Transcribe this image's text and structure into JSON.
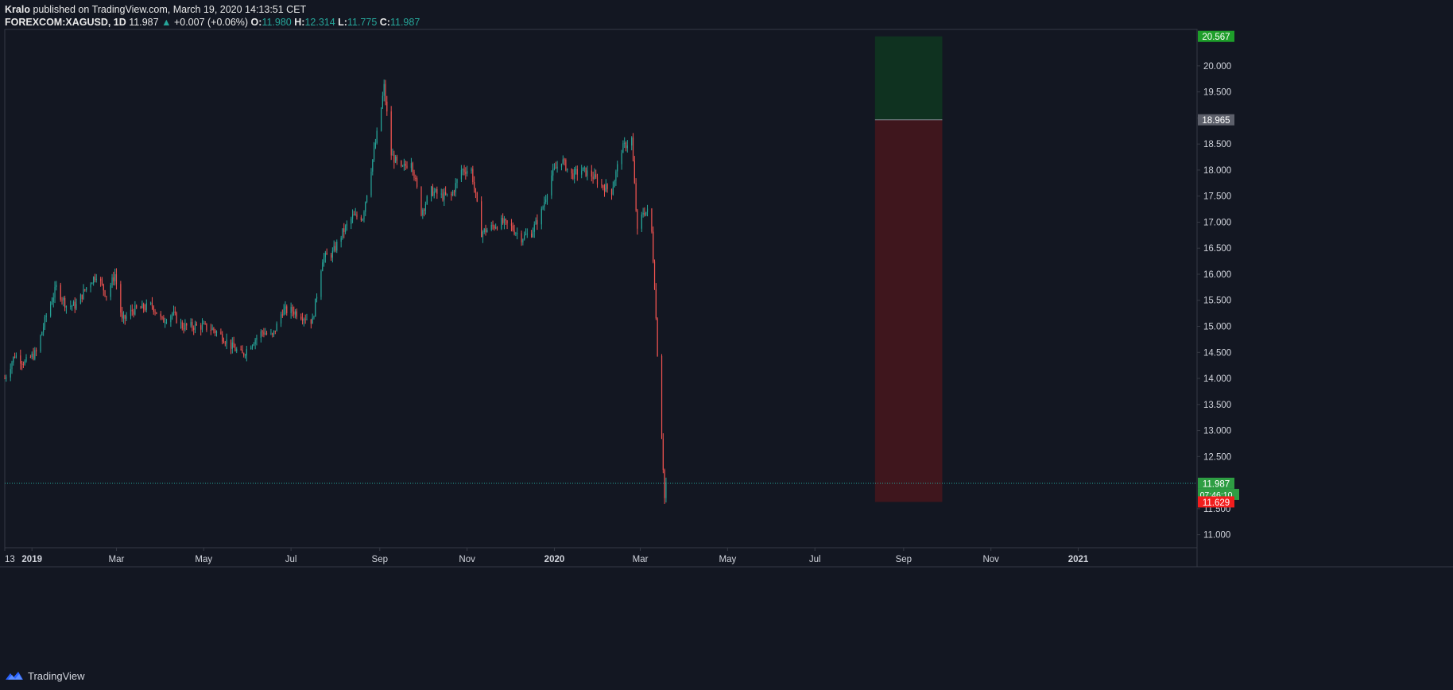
{
  "header": {
    "author": "Kralo",
    "published_text": "published on TradingView.com, March 19, 2020 14:13:51 CET",
    "symbol": "FOREXCOM:XAGUSD, 1D",
    "last": "11.987",
    "change": "+0.007 (+0.06%)",
    "o_label": "O:",
    "o": "11.980",
    "h_label": "H:",
    "h": "12.314",
    "l_label": "L:",
    "l": "11.775",
    "c_label": "C:",
    "c": "11.987"
  },
  "footer": {
    "logo_text": "TradingView",
    "logo_icon": "tradingview-logo-icon"
  },
  "colors": {
    "background": "#131722",
    "up": "#26a69a",
    "down": "#ef5350",
    "target_zone": "#0f3220",
    "stop_zone": "#3f161d",
    "axis_text": "#d1d4dc",
    "border": "#363a45"
  },
  "chart_data": {
    "type": "candlestick",
    "symbol": "FOREXCOM:XAGUSD",
    "interval": "1D",
    "ylim": [
      10.75,
      20.7
    ],
    "y_ticks": [
      "11.000",
      "11.500",
      "12.500",
      "13.000",
      "13.500",
      "14.000",
      "14.500",
      "15.000",
      "15.500",
      "16.000",
      "16.500",
      "17.000",
      "17.500",
      "18.000",
      "18.500",
      "19.000",
      "19.500",
      "20.000"
    ],
    "x_start": "2018-12-13",
    "x_end": "2021-03-25",
    "x_ticks": [
      {
        "date": "2018-12-13",
        "label": "13"
      },
      {
        "date": "2019-01-01",
        "label": "2019"
      },
      {
        "date": "2019-03-01",
        "label": "Mar"
      },
      {
        "date": "2019-05-01",
        "label": "May"
      },
      {
        "date": "2019-07-01",
        "label": "Jul"
      },
      {
        "date": "2019-09-01",
        "label": "Sep"
      },
      {
        "date": "2019-11-01",
        "label": "Nov"
      },
      {
        "date": "2020-01-01",
        "label": "2020"
      },
      {
        "date": "2020-03-01",
        "label": "Mar"
      },
      {
        "date": "2020-05-01",
        "label": "May"
      },
      {
        "date": "2020-07-01",
        "label": "Jul"
      },
      {
        "date": "2020-09-01",
        "label": "Sep"
      },
      {
        "date": "2020-11-01",
        "label": "Nov"
      },
      {
        "date": "2021-01-01",
        "label": "2021"
      }
    ],
    "price_path": [
      [
        "2018-12-13",
        14.0
      ],
      [
        "2018-12-20",
        14.45
      ],
      [
        "2018-12-27",
        14.3
      ],
      [
        "2019-01-04",
        14.5
      ],
      [
        "2019-01-11",
        15.2
      ],
      [
        "2019-01-18",
        15.75
      ],
      [
        "2019-01-25",
        15.4
      ],
      [
        "2019-02-01",
        15.4
      ],
      [
        "2019-02-08",
        15.75
      ],
      [
        "2019-02-15",
        16.0
      ],
      [
        "2019-02-22",
        15.6
      ],
      [
        "2019-02-28",
        16.0
      ],
      [
        "2019-03-05",
        15.1
      ],
      [
        "2019-03-12",
        15.3
      ],
      [
        "2019-03-19",
        15.35
      ],
      [
        "2019-03-26",
        15.4
      ],
      [
        "2019-04-02",
        15.1
      ],
      [
        "2019-04-09",
        15.25
      ],
      [
        "2019-04-16",
        15.0
      ],
      [
        "2019-04-23",
        15.0
      ],
      [
        "2019-04-30",
        15.0
      ],
      [
        "2019-05-07",
        14.95
      ],
      [
        "2019-05-14",
        14.8
      ],
      [
        "2019-05-21",
        14.6
      ],
      [
        "2019-05-28",
        14.45
      ],
      [
        "2019-06-04",
        14.7
      ],
      [
        "2019-06-11",
        14.9
      ],
      [
        "2019-06-18",
        14.8
      ],
      [
        "2019-06-25",
        15.3
      ],
      [
        "2019-07-02",
        15.3
      ],
      [
        "2019-07-09",
        15.2
      ],
      [
        "2019-07-16",
        15.1
      ],
      [
        "2019-07-23",
        16.3
      ],
      [
        "2019-07-30",
        16.4
      ],
      [
        "2019-08-06",
        16.8
      ],
      [
        "2019-08-13",
        17.1
      ],
      [
        "2019-08-20",
        17.1
      ],
      [
        "2019-08-27",
        18.2
      ],
      [
        "2019-09-01",
        19.0
      ],
      [
        "2019-09-04",
        19.6
      ],
      [
        "2019-09-09",
        18.3
      ],
      [
        "2019-09-16",
        18.0
      ],
      [
        "2019-09-23",
        18.2
      ],
      [
        "2019-09-30",
        17.2
      ],
      [
        "2019-10-07",
        17.6
      ],
      [
        "2019-10-14",
        17.5
      ],
      [
        "2019-10-21",
        17.5
      ],
      [
        "2019-10-28",
        18.0
      ],
      [
        "2019-11-04",
        18.0
      ],
      [
        "2019-11-11",
        16.8
      ],
      [
        "2019-11-18",
        16.9
      ],
      [
        "2019-11-25",
        17.0
      ],
      [
        "2019-12-02",
        16.9
      ],
      [
        "2019-12-09",
        16.7
      ],
      [
        "2019-12-16",
        16.8
      ],
      [
        "2019-12-23",
        17.2
      ],
      [
        "2019-12-30",
        17.9
      ],
      [
        "2020-01-06",
        18.2
      ],
      [
        "2020-01-13",
        17.9
      ],
      [
        "2020-01-20",
        18.0
      ],
      [
        "2020-01-27",
        17.9
      ],
      [
        "2020-02-03",
        17.7
      ],
      [
        "2020-02-10",
        17.6
      ],
      [
        "2020-02-17",
        18.4
      ],
      [
        "2020-02-24",
        18.6
      ],
      [
        "2020-02-28",
        16.8
      ],
      [
        "2020-03-03",
        17.2
      ],
      [
        "2020-03-06",
        17.2
      ],
      [
        "2020-03-09",
        16.8
      ],
      [
        "2020-03-11",
        15.8
      ],
      [
        "2020-03-13",
        14.5
      ],
      [
        "2020-03-16",
        12.9
      ],
      [
        "2020-03-18",
        11.7
      ],
      [
        "2020-03-19",
        11.987
      ]
    ],
    "current_price": "11.987",
    "countdown": "07:46:10",
    "position": {
      "type": "long",
      "start_date": "2020-08-12",
      "end_date": "2020-09-28",
      "target_price": "20.567",
      "entry_price": "18.965",
      "stop_price": "11.629"
    }
  }
}
